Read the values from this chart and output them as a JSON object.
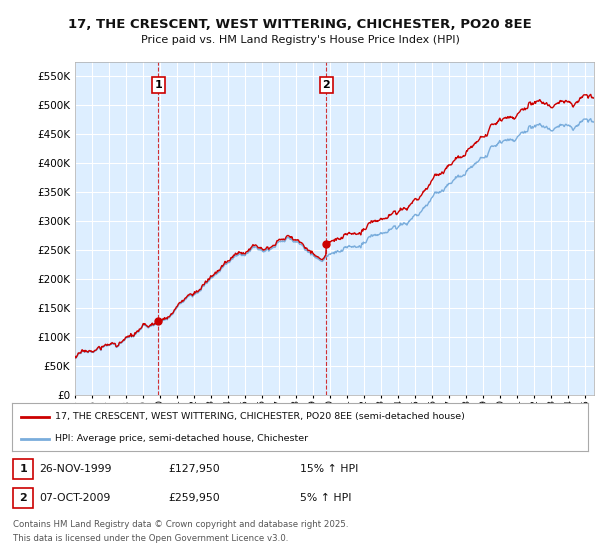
{
  "title": "17, THE CRESCENT, WEST WITTERING, CHICHESTER, PO20 8EE",
  "subtitle": "Price paid vs. HM Land Registry's House Price Index (HPI)",
  "ytick_vals": [
    0,
    50000,
    100000,
    150000,
    200000,
    250000,
    300000,
    350000,
    400000,
    450000,
    500000,
    550000
  ],
  "ylim": [
    0,
    575000
  ],
  "xlim_start": 1995.0,
  "xlim_end": 2025.5,
  "background_color": "#ddeeff",
  "outer_bg_color": "#ffffff",
  "grid_color": "#ffffff",
  "purchase1_year": 1999.9,
  "purchase1_price": 127950,
  "purchase2_year": 2009.77,
  "purchase2_price": 259950,
  "red_line_color": "#cc0000",
  "blue_line_color": "#7aaddc",
  "legend_label_red": "17, THE CRESCENT, WEST WITTERING, CHICHESTER, PO20 8EE (semi-detached house)",
  "legend_label_blue": "HPI: Average price, semi-detached house, Chichester",
  "footer_line1": "Contains HM Land Registry data © Crown copyright and database right 2025.",
  "footer_line2": "This data is licensed under the Open Government Licence v3.0.",
  "table_row1": [
    "1",
    "26-NOV-1999",
    "£127,950",
    "15% ↑ HPI"
  ],
  "table_row2": [
    "2",
    "07-OCT-2009",
    "£259,950",
    "5% ↑ HPI"
  ],
  "xtick_years": [
    1995,
    1996,
    1997,
    1998,
    1999,
    2000,
    2001,
    2002,
    2003,
    2004,
    2005,
    2006,
    2007,
    2008,
    2009,
    2010,
    2011,
    2012,
    2013,
    2014,
    2015,
    2016,
    2017,
    2018,
    2019,
    2020,
    2021,
    2022,
    2023,
    2024,
    2025
  ]
}
